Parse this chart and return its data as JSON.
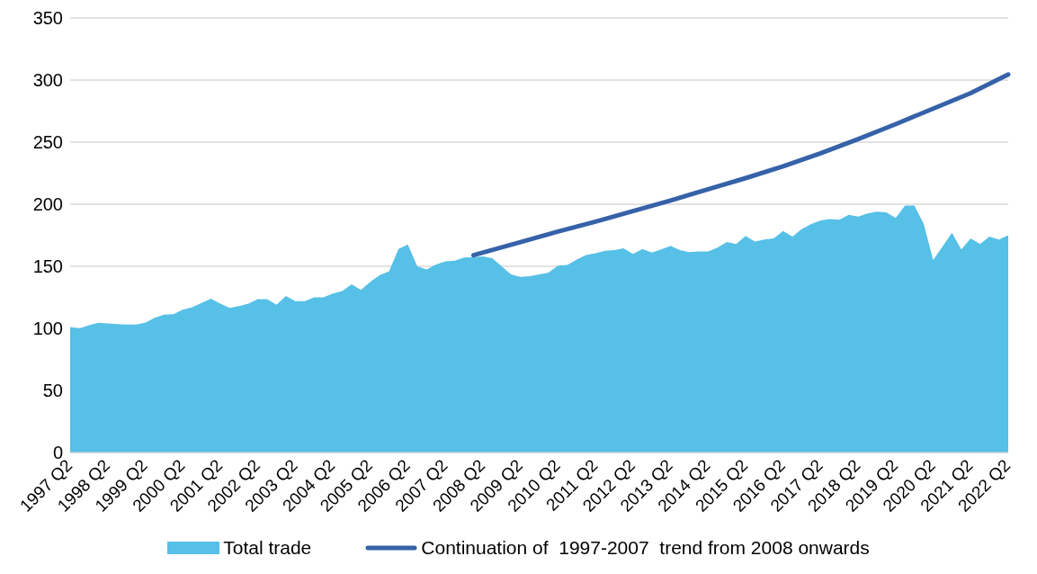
{
  "chart_data": {
    "type": "area",
    "categories": [
      "1997 Q2",
      null,
      null,
      null,
      "1998 Q2",
      null,
      null,
      null,
      "1999 Q2",
      null,
      null,
      null,
      "2000 Q2",
      null,
      null,
      null,
      "2001 Q2",
      null,
      null,
      null,
      "2002 Q2",
      null,
      null,
      null,
      "2003 Q2",
      null,
      null,
      null,
      "2004 Q2",
      null,
      null,
      null,
      "2005 Q2",
      null,
      null,
      null,
      "2006 Q2",
      null,
      null,
      null,
      "2007 Q2",
      null,
      null,
      null,
      "2008 Q2",
      null,
      null,
      null,
      "2009 Q2",
      null,
      null,
      null,
      "2010 Q2",
      null,
      null,
      null,
      "2011 Q2",
      null,
      null,
      null,
      "2012 Q2",
      null,
      null,
      null,
      "2013 Q2",
      null,
      null,
      null,
      "2014 Q2",
      null,
      null,
      null,
      "2015 Q2",
      null,
      null,
      null,
      "2016 Q2",
      null,
      null,
      null,
      "2017 Q2",
      null,
      null,
      null,
      "2018 Q2",
      null,
      null,
      null,
      "2019 Q2",
      null,
      null,
      null,
      "2020 Q2",
      null,
      null,
      null,
      "2021 Q2",
      null,
      null,
      null,
      "2022 Q2"
    ],
    "series": [
      {
        "name": "Total trade",
        "color": "#56c0e7",
        "values": [
          101,
          100,
          102.5,
          104.5,
          104,
          103.5,
          103,
          103,
          104.5,
          108.5,
          111,
          111.5,
          115,
          117,
          120.5,
          124,
          120,
          116.5,
          118,
          120,
          123.5,
          123.5,
          119,
          126,
          122,
          122,
          125,
          125,
          128,
          130,
          135.5,
          131,
          137.5,
          143,
          146,
          164,
          167.5,
          150,
          147.5,
          151.5,
          154,
          154.5,
          157,
          157.5,
          158,
          156.5,
          150,
          143.5,
          141.5,
          142,
          143.5,
          145,
          150.5,
          151,
          155.5,
          159,
          160.5,
          162.5,
          163,
          164.5,
          160,
          164,
          161,
          163.5,
          166.5,
          163,
          161.5,
          162,
          162,
          165,
          169.5,
          168,
          174.5,
          170,
          171.5,
          172.5,
          178.5,
          174,
          180,
          184,
          187,
          188,
          187.5,
          191.5,
          190,
          192.5,
          194,
          193.5,
          189,
          199,
          199,
          184,
          155,
          166,
          177,
          163.5,
          172.5,
          168,
          174,
          171.5,
          175
        ]
      },
      {
        "name": "Continuation of  1997-2007  trend from 2008 onwards",
        "type": "line",
        "color": "#3562a8",
        "values": [
          null,
          null,
          null,
          null,
          null,
          null,
          null,
          null,
          null,
          null,
          null,
          null,
          null,
          null,
          null,
          null,
          null,
          null,
          null,
          null,
          null,
          null,
          null,
          null,
          null,
          null,
          null,
          null,
          null,
          null,
          null,
          null,
          null,
          null,
          null,
          null,
          null,
          null,
          null,
          null,
          null,
          null,
          null,
          159,
          null,
          null,
          null,
          null,
          169.5,
          null,
          null,
          null,
          178,
          null,
          null,
          null,
          186,
          null,
          null,
          null,
          194.5,
          null,
          null,
          null,
          203,
          null,
          null,
          null,
          212,
          null,
          null,
          null,
          221,
          null,
          null,
          null,
          230.5,
          null,
          null,
          null,
          241,
          null,
          null,
          null,
          252.5,
          null,
          null,
          null,
          264.5,
          null,
          null,
          null,
          277,
          null,
          null,
          null,
          289.5,
          null,
          null,
          null,
          304.5
        ]
      }
    ],
    "ylim": [
      0,
      350
    ],
    "yticks": [
      0,
      50,
      100,
      150,
      200,
      250,
      300,
      350
    ],
    "grid": "y",
    "legend": "bottom",
    "line_style": "solid",
    "marker": "none"
  }
}
